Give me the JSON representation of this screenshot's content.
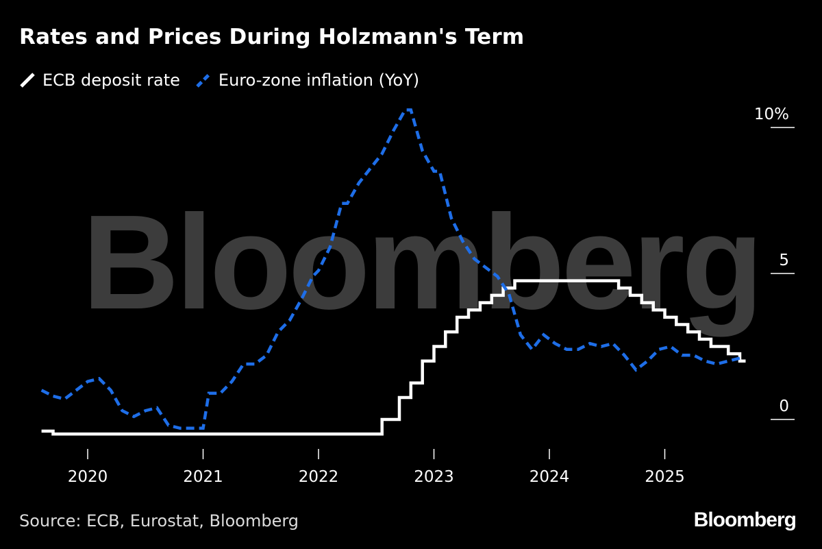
{
  "title": "Rates and Prices During Holzmann's Term",
  "source": "Source: ECB, Eurostat, Bloomberg",
  "brand": "Bloomberg",
  "watermark": "Bloomberg",
  "colors": {
    "background": "#000000",
    "rate": "#ffffff",
    "inflation": "#1e6ee8",
    "axis": "#ffffff"
  },
  "chart_data": {
    "type": "line",
    "title": "Rates and Prices During Holzmann's Term",
    "xlabel": "",
    "ylabel": "",
    "ylim": [
      -1,
      10
    ],
    "xlim": [
      2019.6,
      2025.75
    ],
    "y_ticks": [
      {
        "value": 10,
        "label": "10%"
      },
      {
        "value": 5,
        "label": "5"
      },
      {
        "value": 0,
        "label": "0"
      }
    ],
    "x_ticks": [
      {
        "value": 2020,
        "label": "2020"
      },
      {
        "value": 2021,
        "label": "2021"
      },
      {
        "value": 2022,
        "label": "2022"
      },
      {
        "value": 2023,
        "label": "2023"
      },
      {
        "value": 2024,
        "label": "2024"
      },
      {
        "value": 2025,
        "label": "2025"
      }
    ],
    "legend_position": "top-left",
    "series": [
      {
        "name": "ECB deposit rate",
        "style": "step-solid",
        "color": "#ffffff",
        "x": [
          2019.6,
          2019.7,
          2022.55,
          2022.7,
          2022.8,
          2022.9,
          2023.0,
          2023.1,
          2023.2,
          2023.3,
          2023.4,
          2023.5,
          2023.6,
          2023.7,
          2024.45,
          2024.6,
          2024.7,
          2024.8,
          2024.9,
          2025.0,
          2025.1,
          2025.2,
          2025.3,
          2025.4,
          2025.55,
          2025.65
        ],
        "values": [
          -0.4,
          -0.5,
          0.0,
          0.75,
          1.25,
          2.0,
          2.5,
          3.0,
          3.5,
          3.75,
          4.0,
          4.25,
          4.5,
          4.75,
          4.75,
          4.5,
          4.25,
          4.0,
          3.75,
          3.5,
          3.25,
          3.0,
          2.75,
          2.5,
          2.25,
          2.0
        ]
      },
      {
        "name": "Euro-zone inflation (YoY)",
        "style": "dashed",
        "color": "#1e6ee8",
        "x": [
          2019.6,
          2019.7,
          2019.8,
          2019.9,
          2020.0,
          2020.1,
          2020.2,
          2020.3,
          2020.4,
          2020.5,
          2020.6,
          2020.7,
          2020.8,
          2020.9,
          2021.0,
          2021.05,
          2021.15,
          2021.25,
          2021.35,
          2021.45,
          2021.55,
          2021.65,
          2021.75,
          2021.85,
          2021.95,
          2022.0,
          2022.1,
          2022.2,
          2022.25,
          2022.35,
          2022.45,
          2022.55,
          2022.65,
          2022.75,
          2022.8,
          2022.9,
          2023.0,
          2023.05,
          2023.15,
          2023.25,
          2023.35,
          2023.45,
          2023.55,
          2023.65,
          2023.75,
          2023.85,
          2023.95,
          2024.05,
          2024.15,
          2024.25,
          2024.35,
          2024.45,
          2024.55,
          2024.65,
          2024.75,
          2024.85,
          2024.95,
          2025.05,
          2025.15,
          2025.25,
          2025.35,
          2025.45,
          2025.55,
          2025.65
        ],
        "values": [
          1.0,
          0.8,
          0.7,
          1.0,
          1.3,
          1.4,
          1.0,
          0.3,
          0.1,
          0.3,
          0.4,
          -0.2,
          -0.3,
          -0.3,
          -0.3,
          0.9,
          0.9,
          1.3,
          1.9,
          1.9,
          2.2,
          3.0,
          3.4,
          4.1,
          4.9,
          5.1,
          5.9,
          7.4,
          7.4,
          8.1,
          8.6,
          9.1,
          9.9,
          10.6,
          10.6,
          9.2,
          8.5,
          8.5,
          6.9,
          6.1,
          5.5,
          5.2,
          4.9,
          4.3,
          2.9,
          2.4,
          2.9,
          2.6,
          2.4,
          2.4,
          2.6,
          2.5,
          2.6,
          2.2,
          1.7,
          2.0,
          2.4,
          2.5,
          2.2,
          2.2,
          2.0,
          1.9,
          2.0,
          2.1
        ]
      }
    ]
  }
}
